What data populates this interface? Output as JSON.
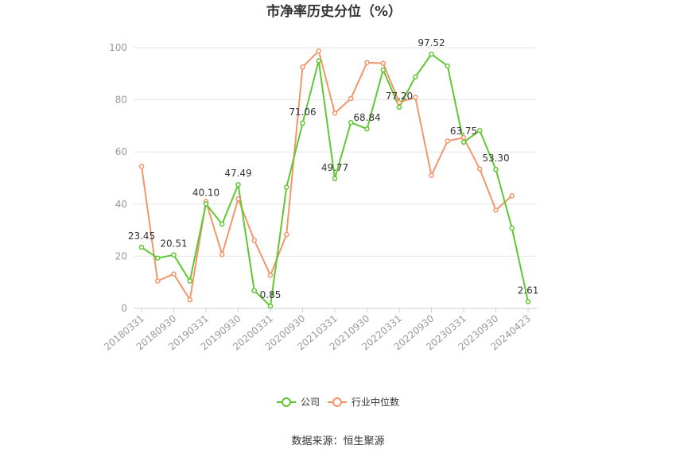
{
  "chart_data": {
    "type": "line",
    "title": "市净率历史分位（%）",
    "source": "数据来源：恒生聚源",
    "ylim": [
      0,
      100
    ],
    "yticks": [
      "0",
      "20",
      "40",
      "60",
      "80",
      "100"
    ],
    "grid": true,
    "legend_position": "bottom",
    "x": [
      "20180331",
      "20180630",
      "20180930",
      "20181231",
      "20190331",
      "20190630",
      "20190930",
      "20191231",
      "20200331",
      "20200630",
      "20200930",
      "20201231",
      "20210331",
      "20210630",
      "20210930",
      "20211231",
      "20220331",
      "20220630",
      "20220930",
      "20221231",
      "20230331",
      "20230630",
      "20230930",
      "20231231",
      "20240423"
    ],
    "xtick_labels": [
      "20180331",
      "20180930",
      "20190331",
      "20190930",
      "20200331",
      "20200930",
      "20210331",
      "20210930",
      "20220331",
      "20220930",
      "20230331",
      "20230930",
      "20240423"
    ],
    "series": [
      {
        "name": "公司",
        "color": "#5fc732",
        "values": [
          23.45,
          19.3,
          20.51,
          10.5,
          40.1,
          32.3,
          47.49,
          6.8,
          0.85,
          46.5,
          71.06,
          95.0,
          49.77,
          71.3,
          68.84,
          91.5,
          77.2,
          88.8,
          97.52,
          93.0,
          63.75,
          68.2,
          53.3,
          30.8,
          2.61
        ],
        "labels": [
          "23.45",
          "",
          "20.51",
          "",
          "40.10",
          "",
          "47.49",
          "",
          "0.85",
          "",
          "71.06",
          "",
          "49.77",
          "",
          "68.84",
          "",
          "77.20",
          "",
          "97.52",
          "",
          "63.75",
          "",
          "53.30",
          "",
          "2.61"
        ]
      },
      {
        "name": "行业中位数",
        "color": "#f5956a",
        "values": [
          54.5,
          10.5,
          13.2,
          3.3,
          41.0,
          20.7,
          42.0,
          26.1,
          12.7,
          28.3,
          92.6,
          98.7,
          74.9,
          80.5,
          94.3,
          94.0,
          79.0,
          81.0,
          51.0,
          64.2,
          65.5,
          53.5,
          37.7,
          43.2,
          null
        ]
      }
    ]
  }
}
